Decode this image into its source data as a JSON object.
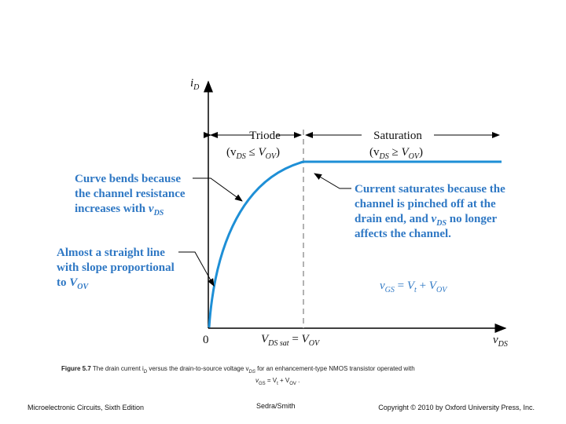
{
  "axes": {
    "y_label": [
      "i",
      "D"
    ],
    "x_label": [
      "v",
      "DS"
    ],
    "origin": "0",
    "vds_sat": [
      "V",
      "DS sat",
      " = ",
      "V",
      "OV"
    ]
  },
  "regions": {
    "triode": {
      "name": "Triode",
      "condition": [
        "(v",
        "DS",
        " ≤ ",
        "V",
        "OV",
        ")"
      ]
    },
    "saturation": {
      "name": "Saturation",
      "condition": [
        "(v",
        "DS",
        " ≥ ",
        "V",
        "OV",
        ")"
      ]
    }
  },
  "annotations": {
    "curve_bends": [
      [
        "Curve bends because"
      ],
      [
        "the channel resistance"
      ],
      [
        "increases with ",
        "v",
        "DS"
      ]
    ],
    "straight_line": [
      [
        "Almost a straight line"
      ],
      [
        "with slope proportional"
      ],
      [
        "to ",
        "V",
        "OV"
      ]
    ],
    "saturates": [
      [
        "Current saturates because the"
      ],
      [
        "channel is pinched off at the"
      ],
      [
        "drain end, and ",
        "v",
        "DS",
        " no longer"
      ],
      [
        "affects the channel."
      ]
    ]
  },
  "vgs": [
    "v",
    "GS",
    " = ",
    "V",
    "t",
    " + ",
    "V",
    "OV"
  ],
  "caption": {
    "label": "Figure 5.7",
    "line1": [
      " The drain current i",
      "D",
      " versus the drain-to-source voltage v",
      "DS",
      " for an enhancement-type NMOS transistor operated with"
    ],
    "line2": [
      "v",
      "GS",
      " = V",
      "t",
      " + V",
      "OV",
      " ."
    ]
  },
  "footer": {
    "book": "Microelectronic Circuits, Sixth Edition",
    "authors": "Sedra/Smith",
    "copyright": "Copyright © 2010 by Oxford University Press, Inc."
  }
}
